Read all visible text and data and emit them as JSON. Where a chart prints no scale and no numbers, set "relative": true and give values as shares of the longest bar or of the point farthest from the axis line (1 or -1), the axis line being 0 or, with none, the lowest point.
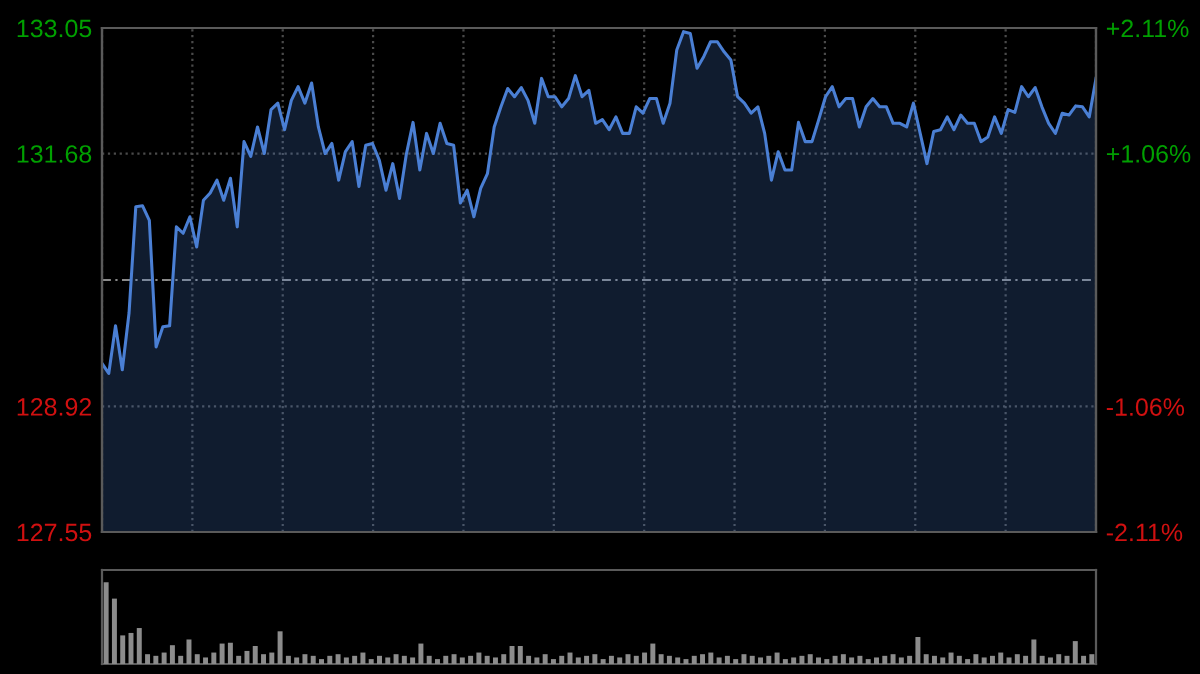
{
  "chart_data": [
    {
      "type": "area",
      "categories": [
        null,
        null,
        null,
        null,
        null,
        null,
        null,
        null,
        null,
        null,
        null,
        null,
        null,
        null,
        null,
        null,
        null,
        null,
        null,
        null,
        null,
        null,
        null,
        null,
        null,
        null,
        null,
        null,
        null,
        null,
        null,
        null,
        null,
        null,
        null,
        null,
        null,
        null,
        null,
        null,
        null,
        null,
        null,
        null,
        null,
        null,
        null,
        null,
        null,
        null,
        null,
        null,
        null,
        null,
        null,
        null,
        null,
        null,
        null,
        null,
        null,
        null,
        null,
        null,
        null,
        null,
        null,
        null,
        null,
        null,
        null,
        null,
        null,
        null,
        null,
        null,
        null,
        null,
        null,
        null,
        null,
        null,
        null,
        null,
        null,
        null,
        null,
        null,
        null,
        null,
        null,
        null,
        null,
        null,
        null,
        null,
        null,
        null,
        null,
        null,
        null,
        null,
        null,
        null,
        null,
        null,
        null,
        null,
        null,
        null,
        null,
        null,
        null,
        null,
        null,
        null,
        null,
        null,
        null,
        null,
        null,
        null,
        null,
        null,
        null,
        null,
        null,
        null,
        null,
        null,
        null,
        null,
        null,
        null,
        null,
        null,
        null,
        null,
        null,
        null,
        null,
        null,
        null,
        null,
        null,
        null,
        null,
        null
      ],
      "ylim": [
        127.55,
        133.05
      ],
      "yticks": [
        127.55,
        128.92,
        131.68,
        133.05
      ],
      "y2lim": [
        -2.11,
        2.11
      ],
      "y2ticks": [
        {
          "value": 2.11,
          "label": "+2.11%"
        },
        {
          "value": 1.06,
          "label": "+1.06%"
        },
        {
          "value": -1.06,
          "label": "-1.06%"
        },
        {
          "value": -2.11,
          "label": "-2.11%"
        }
      ],
      "grid": true,
      "line_style": "solid",
      "ref_lines": [
        {
          "axis": "y",
          "value": 130.3,
          "line_style": "dashed",
          "color": "#8a8a8a"
        }
      ],
      "series": [
        {
          "color": "#4a7fd4",
          "values": [
            129.39,
            129.28,
            129.8,
            129.32,
            129.94,
            131.1,
            131.11,
            130.95,
            129.57,
            129.79,
            129.8,
            130.88,
            130.81,
            130.99,
            130.66,
            131.17,
            131.25,
            131.39,
            131.17,
            131.41,
            130.88,
            131.81,
            131.65,
            131.97,
            131.68,
            132.16,
            132.23,
            131.94,
            132.26,
            132.41,
            132.23,
            132.45,
            131.97,
            131.68,
            131.79,
            131.39,
            131.7,
            131.81,
            131.32,
            131.77,
            131.79,
            131.61,
            131.28,
            131.57,
            131.19,
            131.67,
            132.02,
            131.5,
            131.9,
            131.68,
            132.01,
            131.79,
            131.77,
            131.14,
            131.28,
            130.99,
            131.3,
            131.46,
            131.97,
            132.19,
            132.39,
            132.3,
            132.4,
            132.26,
            132.01,
            132.5,
            132.3,
            132.3,
            132.19,
            132.28,
            132.53,
            132.3,
            132.37,
            132.01,
            132.05,
            131.94,
            132.08,
            131.9,
            131.9,
            132.19,
            132.12,
            132.28,
            132.28,
            132.01,
            132.23,
            132.81,
            133.01,
            132.99,
            132.61,
            132.74,
            132.9,
            132.9,
            132.79,
            132.7,
            132.3,
            132.23,
            132.12,
            132.19,
            131.9,
            131.39,
            131.7,
            131.5,
            131.5,
            132.02,
            131.81,
            131.81,
            132.05,
            132.3,
            132.41,
            132.19,
            132.28,
            132.28,
            131.97,
            132.19,
            132.28,
            132.19,
            132.19,
            132.01,
            132.01,
            131.97,
            132.23,
            131.9,
            131.57,
            131.92,
            131.94,
            132.08,
            131.94,
            132.1,
            132.01,
            132.01,
            131.81,
            131.86,
            132.08,
            131.9,
            132.16,
            132.13,
            132.41,
            132.3,
            132.4,
            132.19,
            132.01,
            131.9,
            132.12,
            132.1,
            132.2,
            132.19,
            132.08,
            132.5
          ]
        }
      ]
    },
    {
      "type": "bar",
      "relative": true,
      "categories": [
        null,
        null,
        null,
        null,
        null,
        null,
        null,
        null,
        null,
        null,
        null,
        null,
        null,
        null,
        null,
        null,
        null,
        null,
        null,
        null,
        null,
        null,
        null,
        null,
        null,
        null,
        null,
        null,
        null,
        null,
        null,
        null,
        null,
        null,
        null,
        null,
        null,
        null,
        null,
        null,
        null,
        null,
        null,
        null,
        null,
        null,
        null,
        null,
        null,
        null,
        null,
        null,
        null,
        null,
        null,
        null,
        null,
        null,
        null,
        null,
        null,
        null,
        null,
        null,
        null,
        null,
        null,
        null,
        null,
        null,
        null,
        null,
        null,
        null,
        null,
        null,
        null,
        null,
        null,
        null,
        null,
        null,
        null,
        null,
        null,
        null,
        null,
        null,
        null,
        null,
        null,
        null,
        null,
        null,
        null,
        null,
        null,
        null,
        null,
        null,
        null,
        null,
        null,
        null,
        null,
        null,
        null,
        null,
        null,
        null,
        null,
        null,
        null,
        null,
        null,
        null,
        null,
        null,
        null,
        null
      ],
      "color": "#8c8c8c",
      "values": [
        1.0,
        0.8,
        0.35,
        0.38,
        0.44,
        0.12,
        0.1,
        0.14,
        0.23,
        0.1,
        0.3,
        0.12,
        0.08,
        0.14,
        0.25,
        0.26,
        0.1,
        0.16,
        0.22,
        0.12,
        0.14,
        0.4,
        0.1,
        0.08,
        0.12,
        0.1,
        0.06,
        0.1,
        0.12,
        0.08,
        0.1,
        0.14,
        0.06,
        0.1,
        0.08,
        0.12,
        0.1,
        0.08,
        0.25,
        0.1,
        0.06,
        0.1,
        0.12,
        0.08,
        0.1,
        0.14,
        0.1,
        0.08,
        0.12,
        0.22,
        0.22,
        0.1,
        0.08,
        0.12,
        0.06,
        0.1,
        0.14,
        0.08,
        0.1,
        0.12,
        0.06,
        0.1,
        0.08,
        0.12,
        0.1,
        0.14,
        0.25,
        0.12,
        0.1,
        0.08,
        0.06,
        0.1,
        0.12,
        0.14,
        0.08,
        0.1,
        0.06,
        0.12,
        0.1,
        0.08,
        0.1,
        0.14,
        0.06,
        0.08,
        0.1,
        0.12,
        0.08,
        0.06,
        0.1,
        0.12,
        0.08,
        0.1,
        0.06,
        0.08,
        0.1,
        0.12,
        0.08,
        0.1,
        0.33,
        0.12,
        0.1,
        0.08,
        0.14,
        0.1,
        0.06,
        0.12,
        0.08,
        0.1,
        0.14,
        0.08,
        0.12,
        0.1,
        0.3,
        0.1,
        0.08,
        0.12,
        0.1,
        0.28,
        0.1,
        0.12
      ]
    }
  ]
}
